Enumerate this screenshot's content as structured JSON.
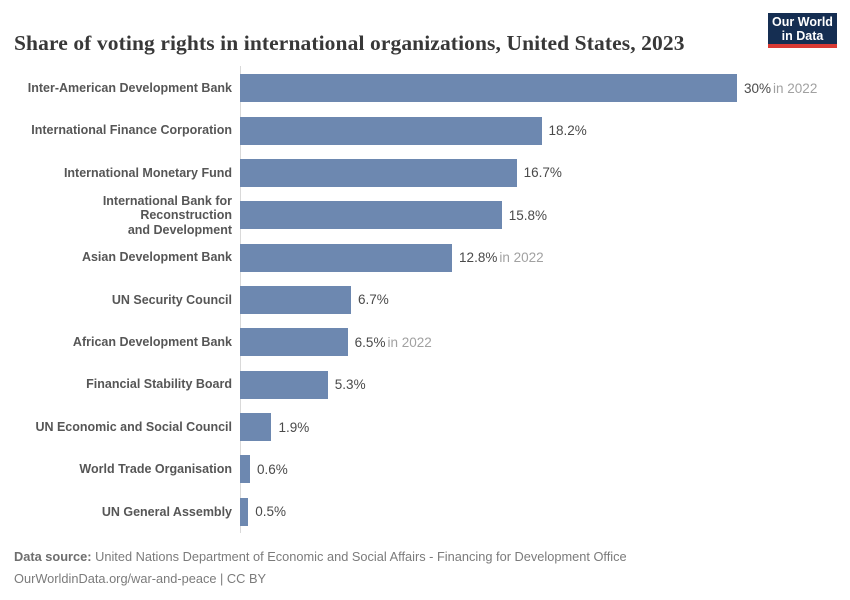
{
  "header": {
    "title": "Share of voting rights in international organizations, United States, 2023",
    "logo": {
      "line1": "Our World",
      "line2": "in Data"
    }
  },
  "chart_data": {
    "type": "bar",
    "orientation": "horizontal",
    "title": "Share of voting rights in international organizations, United States, 2023",
    "categories": [
      "Inter-American Development Bank",
      "International Finance Corporation",
      "International Monetary Fund",
      "International Bank for Reconstruction\nand Development",
      "Asian Development Bank",
      "UN Security Council",
      "African Development Bank",
      "Financial Stability Board",
      "UN Economic and Social Council",
      "World Trade Organisation",
      "UN General Assembly"
    ],
    "values": [
      30,
      18.2,
      16.7,
      15.8,
      12.8,
      6.7,
      6.5,
      5.3,
      1.9,
      0.6,
      0.5
    ],
    "display_values": [
      "30%",
      "18.2%",
      "16.7%",
      "15.8%",
      "12.8%",
      "6.7%",
      "6.5%",
      "5.3%",
      "1.9%",
      "0.6%",
      "0.5%"
    ],
    "notes": [
      "in 2022",
      "",
      "",
      "",
      "in 2022",
      "",
      "in 2022",
      "",
      "",
      "",
      ""
    ],
    "unit": "%",
    "xlim": [
      0,
      30
    ],
    "grid": false,
    "legend": "none",
    "value_label_position": "right-of-bar"
  },
  "colors": {
    "bar": "#6d88b0",
    "axis": "#d9d9d9",
    "logo_navy": "#152e52",
    "logo_red": "#d93a34"
  },
  "footer": {
    "source_label": "Data source:",
    "source_text": "United Nations Department of Economic and Social Affairs - Financing for Development Office",
    "citation": "OurWorldinData.org/war-and-peace | CC BY"
  }
}
